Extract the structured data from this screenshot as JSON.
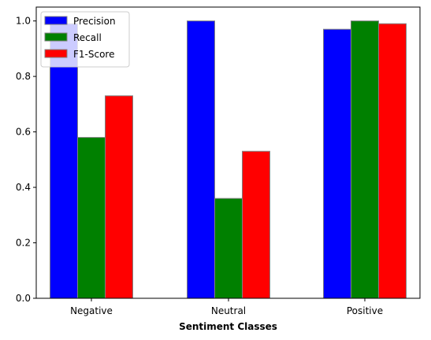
{
  "chart_data": {
    "type": "bar",
    "title": "",
    "xlabel": "Sentiment Classes",
    "ylabel": "",
    "categories": [
      "Negative",
      "Neutral",
      "Positive"
    ],
    "series": [
      {
        "name": "Precision",
        "values": [
          0.99,
          1.0,
          0.97
        ],
        "color": "#0000ff"
      },
      {
        "name": "Recall",
        "values": [
          0.58,
          0.36,
          1.0
        ],
        "color": "#008000"
      },
      {
        "name": "F1-Score",
        "values": [
          0.73,
          0.53,
          0.99
        ],
        "color": "#ff0000"
      }
    ],
    "ylim": [
      0,
      1.05
    ],
    "yticks": [
      "0.0",
      "0.2",
      "0.4",
      "0.6",
      "0.8",
      "1.0"
    ],
    "bar_edge_color": "#808080",
    "grid": false,
    "legend_position": "upper-left"
  }
}
